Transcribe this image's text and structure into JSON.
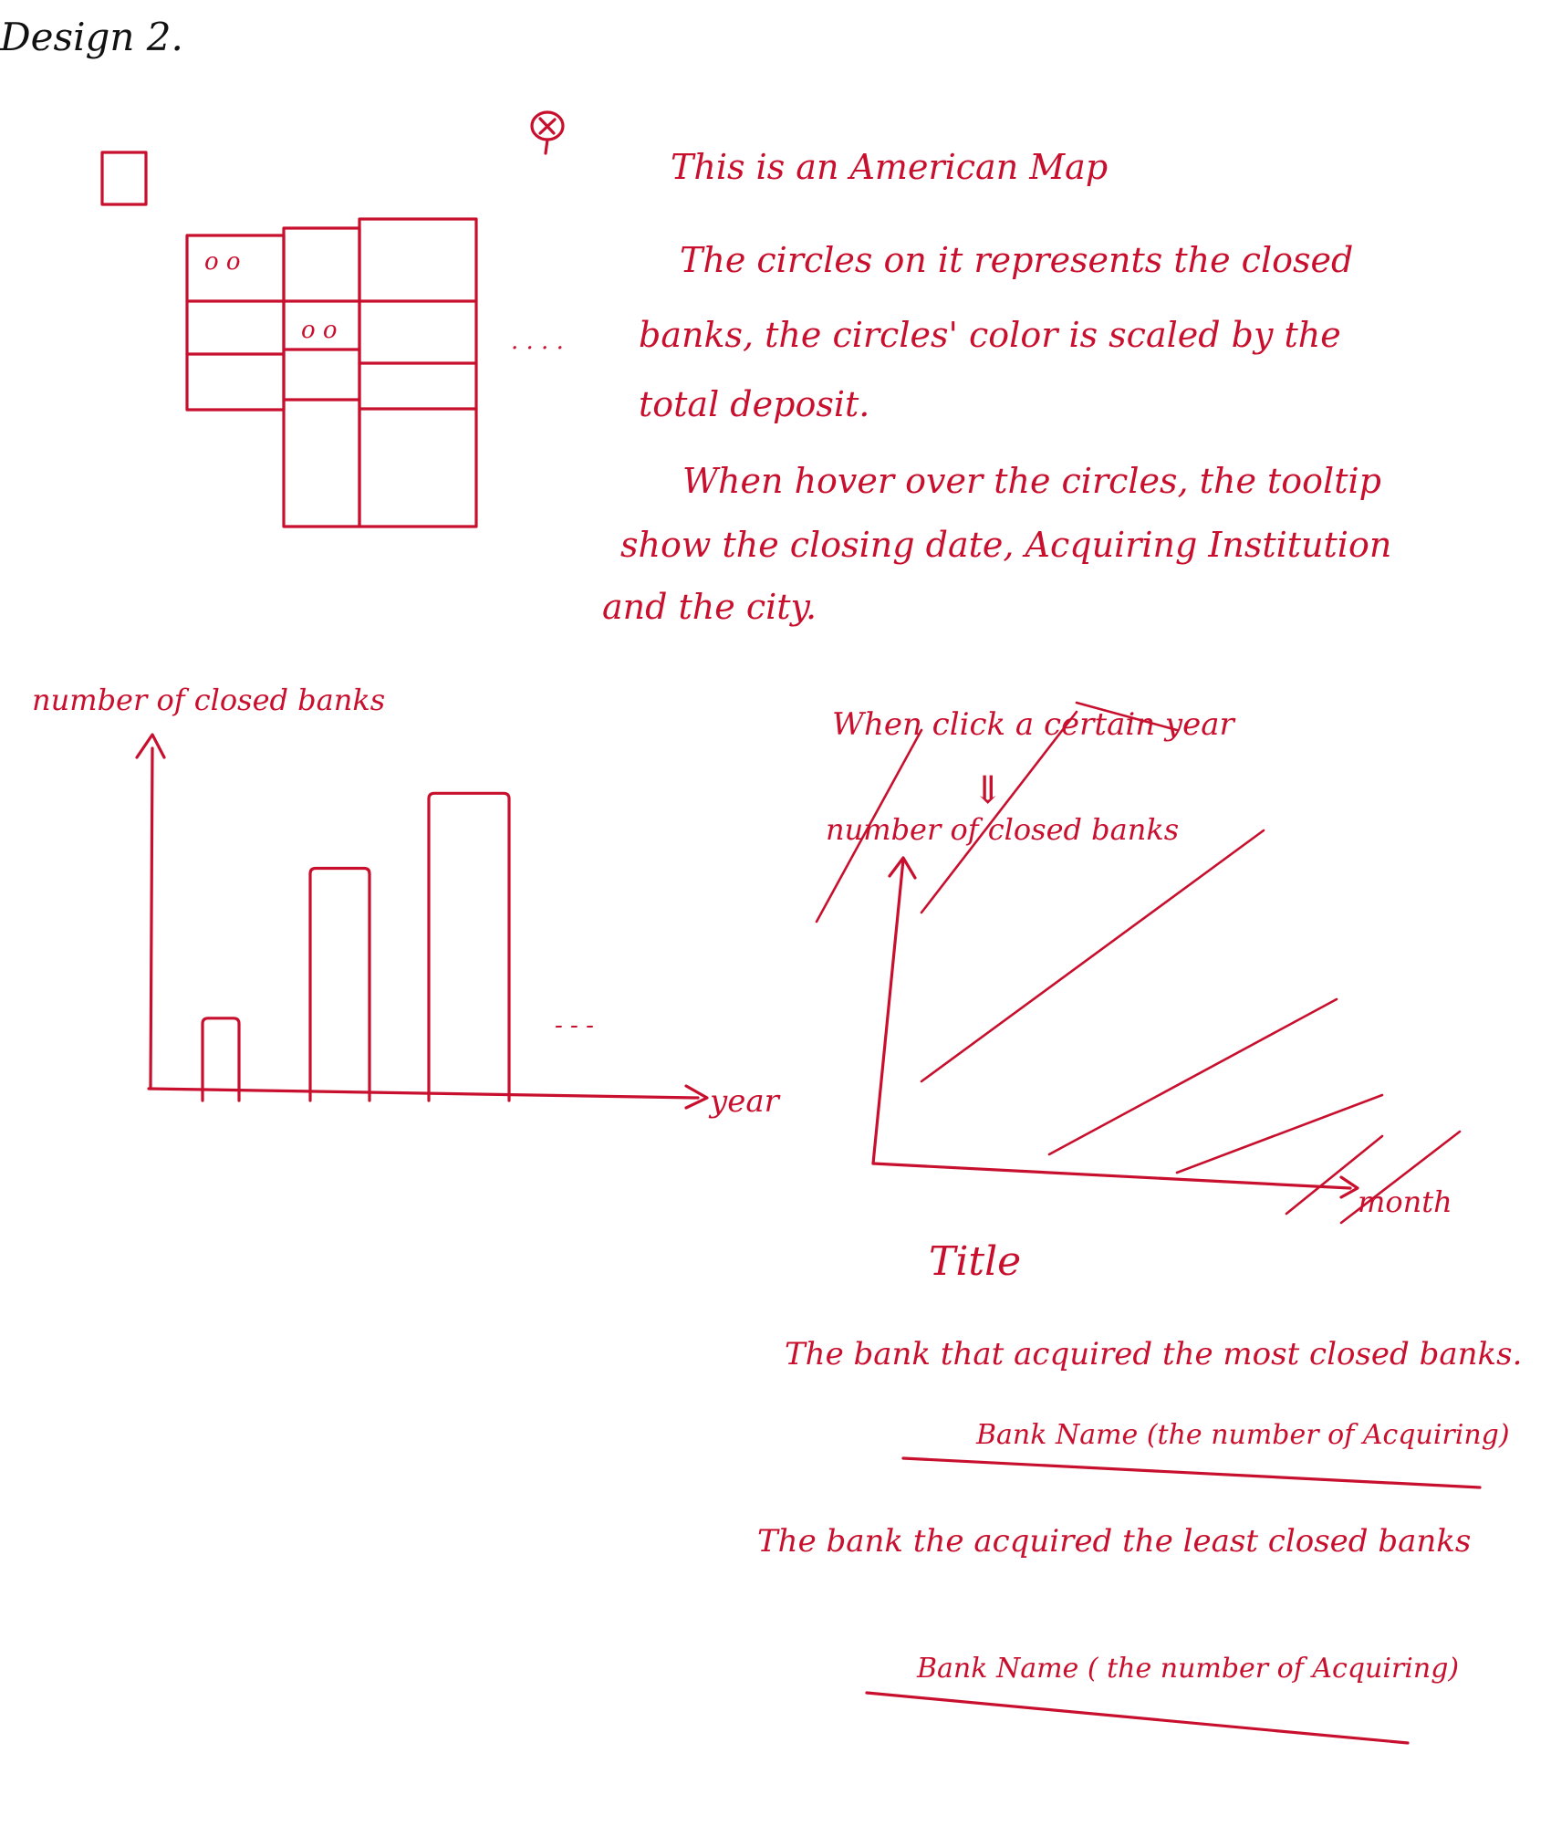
{
  "header": {
    "title": "Design 2."
  },
  "map_note": {
    "line1": "This is an American Map",
    "line2": "The circles on it represents the closed",
    "line3": "banks, the circles' color is scaled by the",
    "line4": "total deposit.",
    "line5": "When hover over the circles, the tooltip",
    "line6": "show the closing date, Acquiring Institution",
    "line7": "and the city."
  },
  "map_placeholder": {
    "cell_a": "o o",
    "cell_b": "o o",
    "ellipsis": ". . . ."
  },
  "year_chart": {
    "ylabel": "number of closed banks",
    "xlabel": "year",
    "ellipsis": "- - -"
  },
  "month_chart": {
    "note": "When click a certain year",
    "arrow": "⇓",
    "ylabel": "number of closed banks",
    "xlabel": "month"
  },
  "summary": {
    "title": "Title",
    "most_label": "The bank that acquired the most closed banks.",
    "most_value": "Bank Name (the number of Acquiring)",
    "least_label": "The bank the acquired the least closed banks",
    "least_value": "Bank Name ( the number of Acquiring)"
  },
  "chart_data": {
    "type": "bar",
    "categories": [
      "",
      "",
      ""
    ],
    "values": [
      1,
      3,
      4
    ],
    "xlabel": "year",
    "ylabel": "number of closed banks",
    "ylim": [
      0,
      4.6
    ]
  },
  "colors": {
    "ink": "#c8102e",
    "pencil": "#111111"
  }
}
